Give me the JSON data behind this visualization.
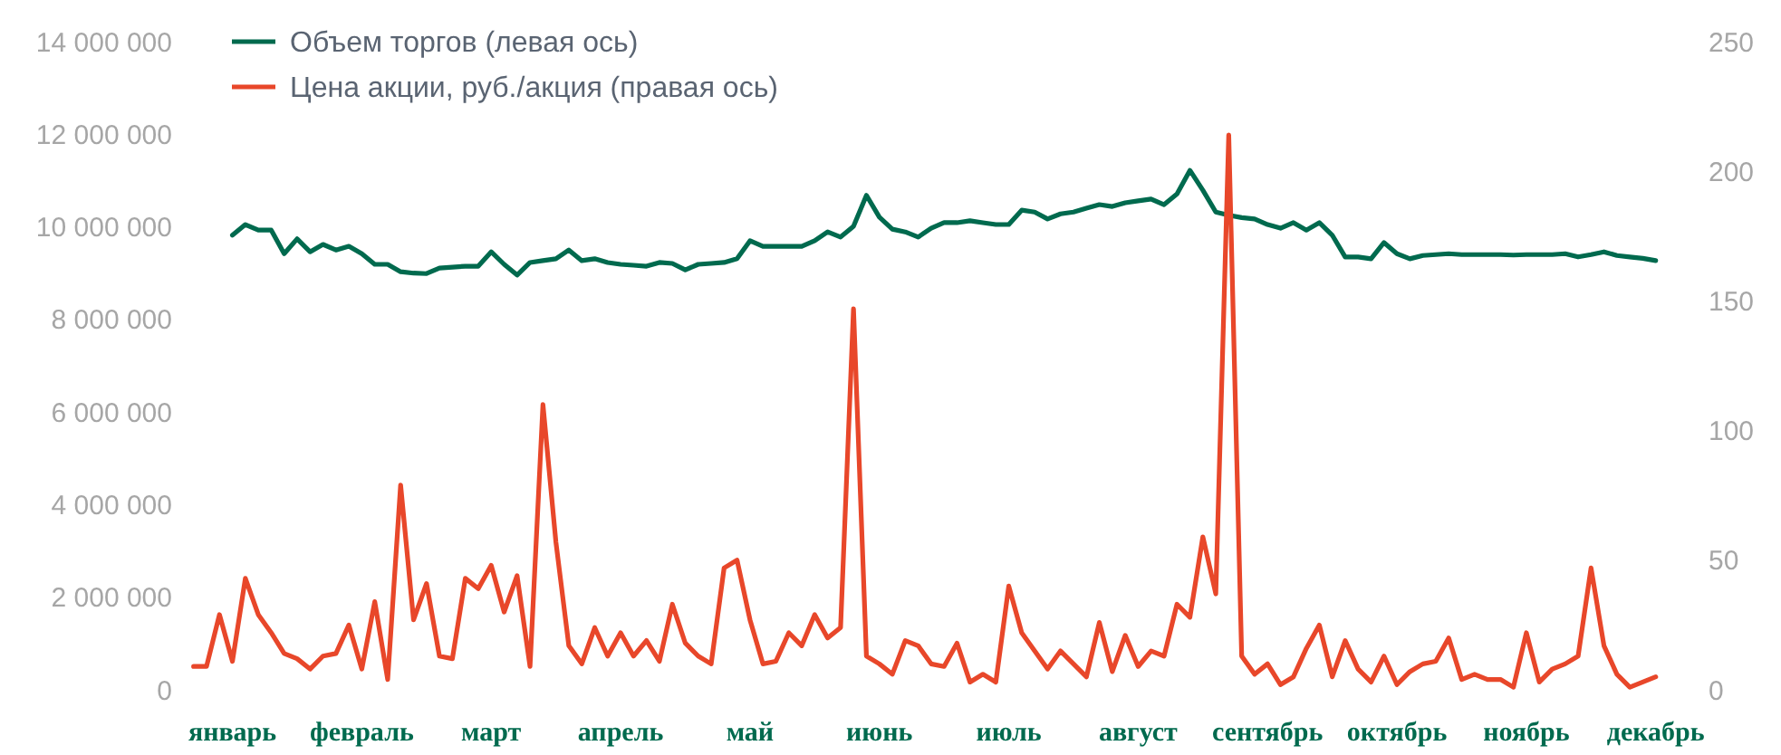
{
  "chart_data": {
    "type": "line",
    "legend": "top",
    "line_style": "solid",
    "marker": "none",
    "categories": [
      null,
      null,
      null,
      null,
      null,
      "январь",
      null,
      null,
      null,
      null,
      null,
      null,
      null,
      null,
      null,
      "февраль",
      null,
      null,
      null,
      null,
      null,
      null,
      null,
      null,
      null,
      "март",
      null,
      null,
      null,
      null,
      null,
      null,
      null,
      null,
      null,
      "апрель",
      null,
      null,
      null,
      null,
      null,
      null,
      null,
      null,
      null,
      "май",
      null,
      null,
      null,
      null,
      null,
      null,
      null,
      null,
      null,
      "июнь",
      null,
      null,
      null,
      null,
      null,
      null,
      null,
      null,
      null,
      "июль",
      null,
      null,
      null,
      null,
      null,
      null,
      null,
      null,
      null,
      "август",
      null,
      null,
      null,
      null,
      null,
      null,
      null,
      null,
      null,
      "сентябрь",
      null,
      null,
      null,
      null,
      null,
      null,
      null,
      null,
      null,
      "октябрь",
      null,
      null,
      null,
      null,
      null,
      null,
      null,
      null,
      null,
      "ноябрь",
      null,
      null,
      null,
      null,
      null,
      null,
      null,
      null,
      null,
      "декабрь",
      null,
      null,
      null,
      null
    ],
    "ylim": [
      0,
      14000000
    ],
    "yticks": [
      {
        "value": 0,
        "label": "0"
      },
      {
        "value": 2000000,
        "label": "2 000 000"
      },
      {
        "value": 4000000,
        "label": "4 000 000"
      },
      {
        "value": 6000000,
        "label": "6 000 000"
      },
      {
        "value": 8000000,
        "label": "8 000 000"
      },
      {
        "value": 10000000,
        "label": "10 000 000"
      },
      {
        "value": 12000000,
        "label": "12 000 000"
      },
      {
        "value": 14000000,
        "label": "14 000 000"
      }
    ],
    "y2lim": [
      0,
      250
    ],
    "y2ticks": [
      0,
      50,
      100,
      150,
      200,
      250
    ],
    "series": [
      {
        "name": "Объем торгов (левая ось)",
        "color": "#006a4e",
        "values": [
          null,
          null,
          null,
          null,
          null,
          9820000,
          10050000,
          9930000,
          9930000,
          9420000,
          9740000,
          9460000,
          9620000,
          9500000,
          9580000,
          9420000,
          9190000,
          9190000,
          9030000,
          9000000,
          8990000,
          9110000,
          9130000,
          9150000,
          9150000,
          9460000,
          9190000,
          8960000,
          9230000,
          9270000,
          9310000,
          9500000,
          9270000,
          9310000,
          9230000,
          9190000,
          9170000,
          9150000,
          9230000,
          9210000,
          9070000,
          9190000,
          9210000,
          9230000,
          9310000,
          9700000,
          9580000,
          9580000,
          9580000,
          9580000,
          9700000,
          9890000,
          9780000,
          10010000,
          10680000,
          10210000,
          9950000,
          9890000,
          9780000,
          9970000,
          10090000,
          10090000,
          10130000,
          10090000,
          10050000,
          10050000,
          10360000,
          10320000,
          10170000,
          10280000,
          10320000,
          10400000,
          10480000,
          10440000,
          10520000,
          10560000,
          10600000,
          10480000,
          10710000,
          11220000,
          10790000,
          10320000,
          10250000,
          10200000,
          10170000,
          10050000,
          9970000,
          10090000,
          9930000,
          10090000,
          9820000,
          9350000,
          9350000,
          9310000,
          9660000,
          9420000,
          9310000,
          9380000,
          9400000,
          9420000,
          9400000,
          9400000,
          9400000,
          9400000,
          9390000,
          9400000,
          9400000,
          9400000,
          9420000,
          9350000,
          9400000,
          9460000,
          9380000,
          9350000,
          9320000,
          9270000,
          null,
          null,
          null,
          null
        ]
      },
      {
        "name": "Цена акции, руб./акция (правая ось)",
        "color": "#e8472a",
        "axis": "y2",
        "values": [
          null,
          null,
          9,
          9,
          29,
          11,
          43,
          29,
          22,
          14,
          12,
          8,
          13,
          14,
          25,
          8,
          34,
          4,
          79,
          27,
          41,
          13,
          12,
          43,
          39,
          48,
          30,
          44,
          9,
          110,
          57,
          17,
          10,
          24,
          13,
          22,
          13,
          19,
          11,
          33,
          18,
          13,
          10,
          47,
          50,
          27,
          10,
          11,
          22,
          17,
          29,
          20,
          24,
          147,
          13,
          10,
          6,
          19,
          17,
          10,
          9,
          18,
          3,
          6,
          3,
          40,
          22,
          15,
          8,
          15,
          10,
          5,
          26,
          7,
          21,
          9,
          15,
          13,
          33,
          28,
          59,
          37,
          214,
          13,
          6,
          10,
          2,
          5,
          16,
          25,
          5,
          19,
          8,
          3,
          13,
          2,
          7,
          10,
          11,
          20,
          4,
          6,
          4,
          4,
          1,
          22,
          3,
          8,
          10,
          13,
          47,
          17,
          6,
          1,
          3,
          5,
          null,
          null,
          null,
          null
        ]
      }
    ]
  }
}
